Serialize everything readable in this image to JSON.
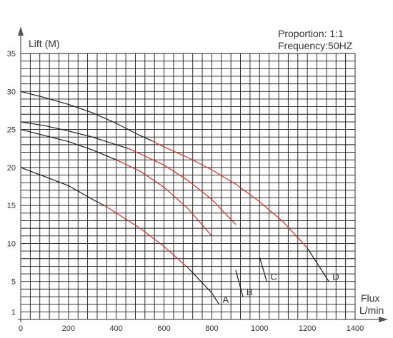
{
  "chart_data": {
    "type": "line",
    "title": "",
    "annotations": [
      "Proportion: 1:1",
      "Frequency:50HZ"
    ],
    "ylabel": "Lift (M)",
    "xlabel": "Flux L/min",
    "xlabel_lines": [
      "Flux",
      "L/min"
    ],
    "xlim": [
      0,
      1400
    ],
    "ylim": [
      0,
      35
    ],
    "x_ticks": [
      0,
      200,
      400,
      600,
      800,
      1000,
      1200,
      1400
    ],
    "y_ticks": [
      1,
      5,
      10,
      15,
      20,
      25,
      30,
      35
    ],
    "grid": true,
    "colors": {
      "normal_range": "#1a1a1a",
      "efficient_range": "#d0302b",
      "grid": "#1a1a1a"
    },
    "series": [
      {
        "name": "A",
        "x": [
          0,
          100,
          200,
          300,
          350,
          400,
          500,
          600,
          700,
          800,
          830
        ],
        "y": [
          20,
          18.8,
          17.6,
          15.8,
          15,
          14,
          12,
          9.6,
          6.8,
          3.5,
          2
        ],
        "efficient_range": [
          350,
          700
        ]
      },
      {
        "name": "B",
        "x": [
          0,
          100,
          200,
          300,
          400,
          400,
          500,
          600,
          700,
          800,
          900,
          930
        ],
        "y": [
          25,
          24.2,
          23.4,
          22.3,
          21,
          21,
          19.5,
          17.4,
          14.6,
          11,
          6.5,
          3
        ],
        "efficient_range": [
          400,
          850
        ]
      },
      {
        "name": "C",
        "x": [
          0,
          100,
          200,
          300,
          400,
          450,
          500,
          600,
          700,
          800,
          900,
          1000,
          1030
        ],
        "y": [
          26,
          25.5,
          24.8,
          24,
          23,
          22.5,
          21.8,
          20.3,
          18.3,
          15.8,
          12.5,
          8.2,
          5
        ],
        "efficient_range": [
          450,
          950
        ]
      },
      {
        "name": "D",
        "x": [
          0,
          100,
          200,
          300,
          400,
          500,
          550,
          600,
          700,
          800,
          900,
          1000,
          1100,
          1200,
          1290
        ],
        "y": [
          30,
          29.2,
          28.3,
          27.2,
          25.8,
          24.2,
          23.5,
          22.7,
          21.3,
          19.7,
          17.8,
          15.5,
          12.8,
          9.4,
          5
        ],
        "efficient_range": [
          550,
          1200
        ]
      }
    ]
  }
}
